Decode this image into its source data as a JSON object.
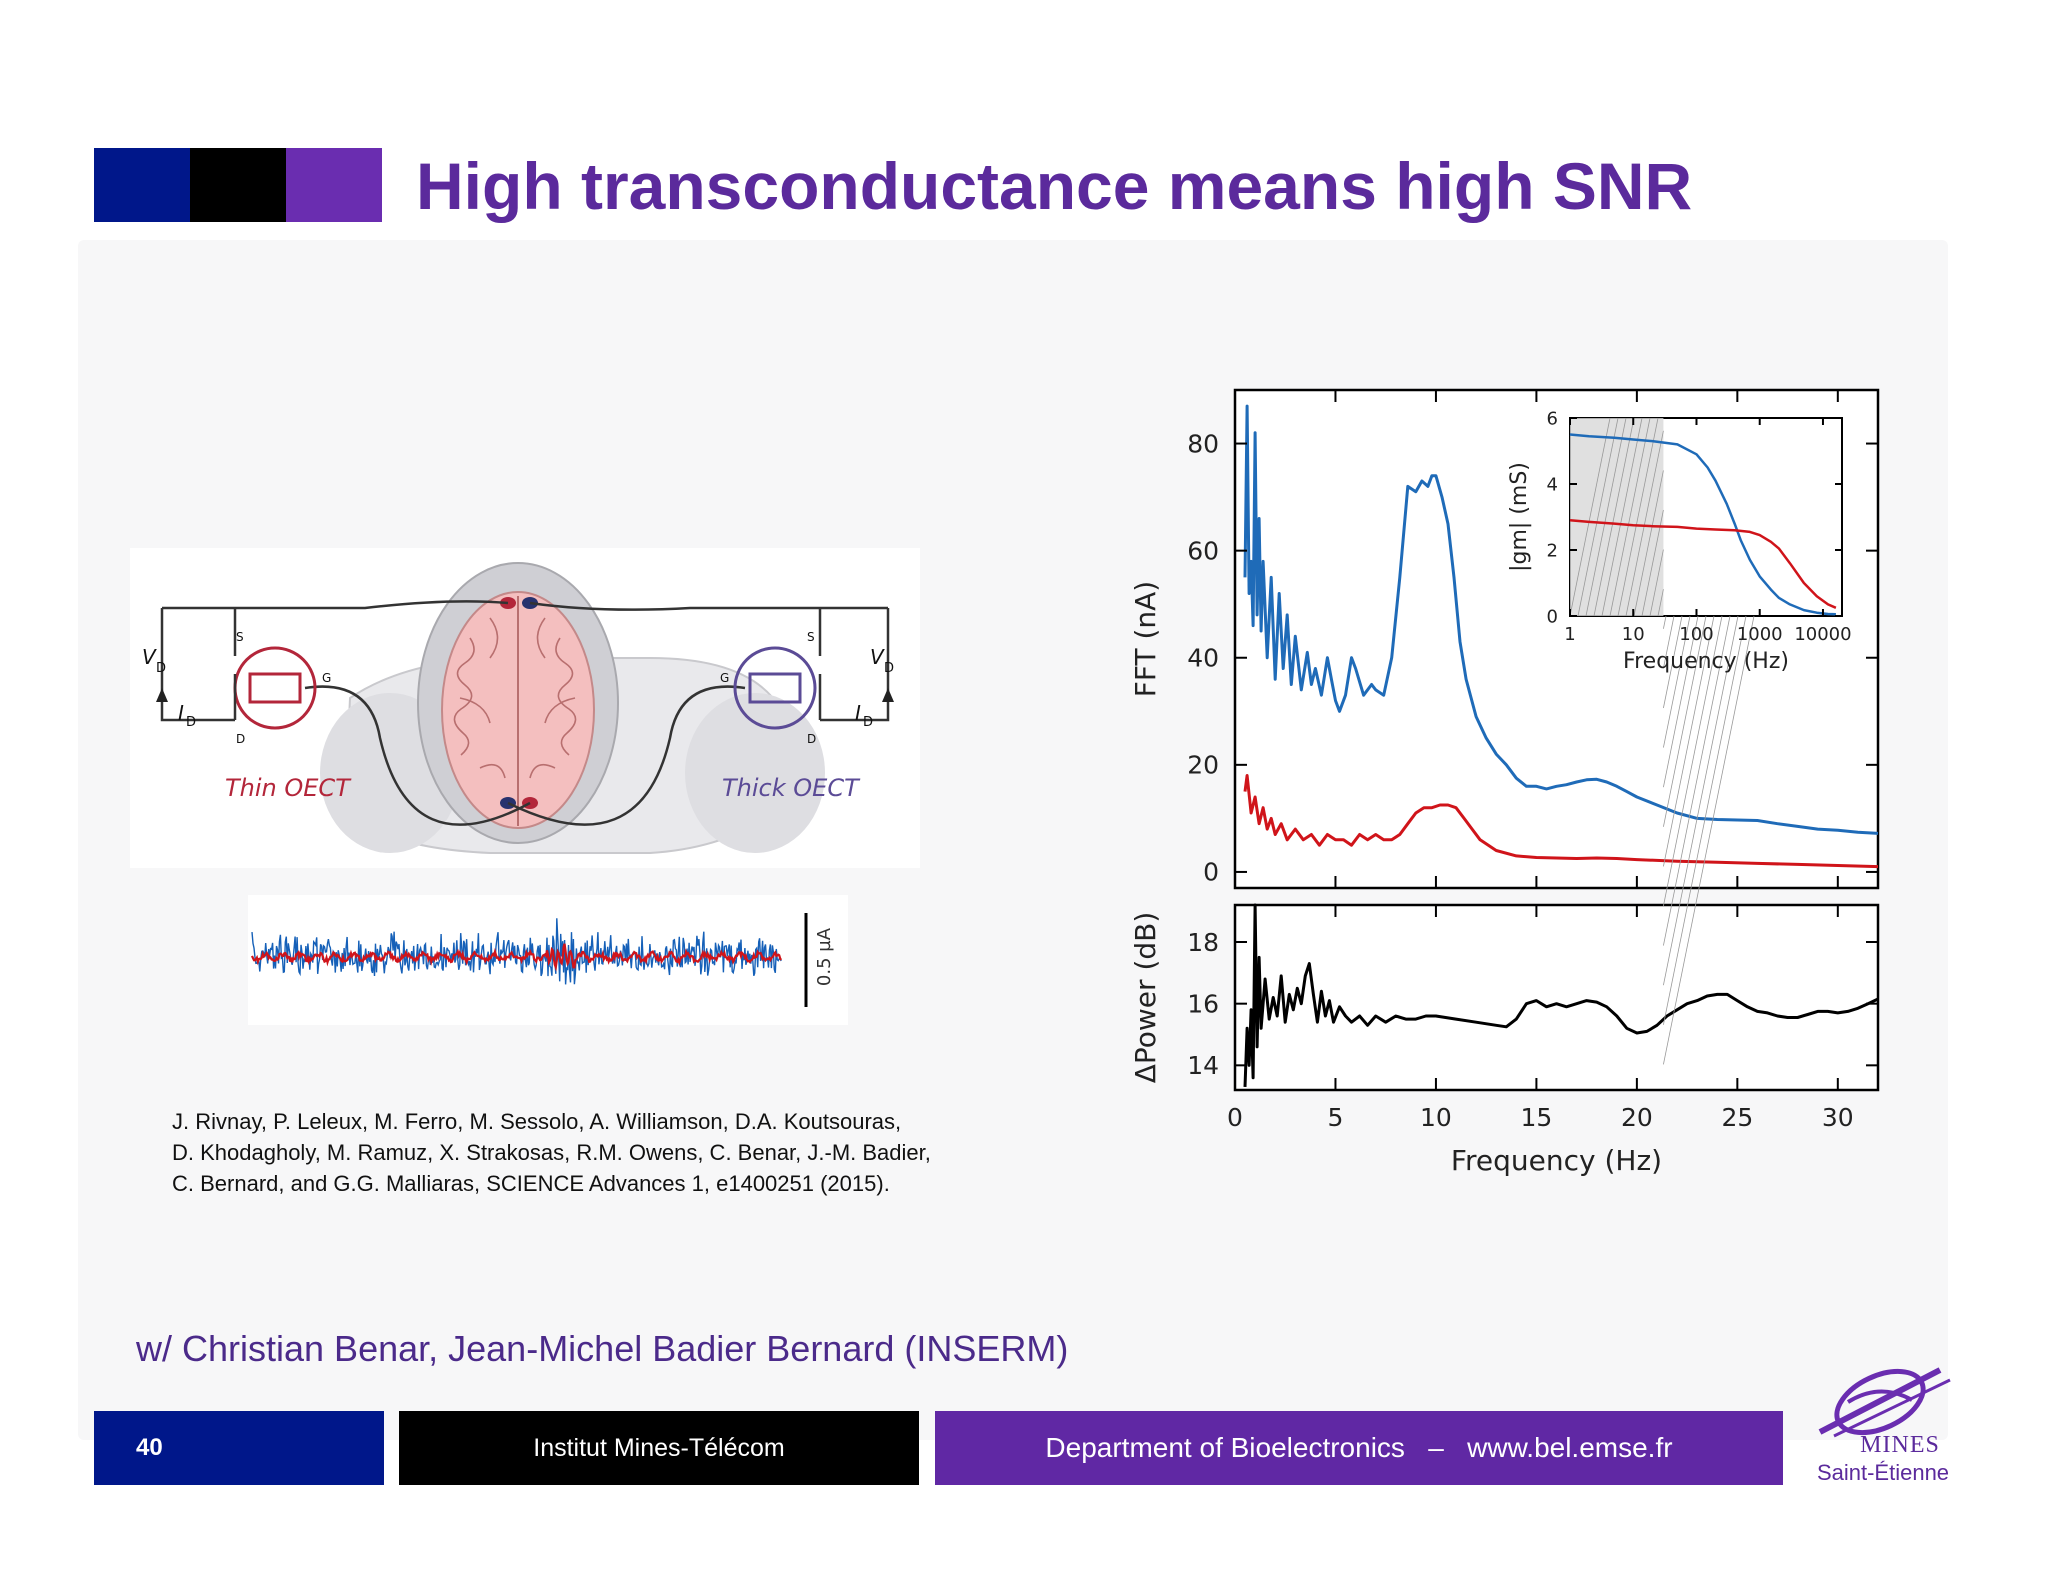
{
  "slide": {
    "title": "High transconductance means high SNR",
    "header_colors": [
      "#00178a",
      "#000000",
      "#6a2db0"
    ],
    "credit": "w/ Christian Benar, Jean-Michel Badier Bernard (INSERM)",
    "citation_lines": [
      "J. Rivnay, P. Leleux, M. Ferro, M. Sessolo, A. Williamson, D.A. Koutsouras,",
      "D. Khodagholy, M. Ramuz, X. Strakosas, R.M. Owens, C. Benar, J.-M. Badier,",
      "C. Bernard, and G.G. Malliaras, SCIENCE Advances 1, e1400251 (2015)."
    ]
  },
  "footer": {
    "page_number": "40",
    "institute": "Institut Mines-Télécom",
    "department": "Department of Bioelectronics   –   www.bel.emse.fr",
    "logo_line1": "MINES",
    "logo_line2": "Saint-Étienne"
  },
  "schematic": {
    "left_label": "Thin OECT",
    "right_label": "Thick OECT",
    "vd": "V",
    "vd_sub": "D",
    "id": "I",
    "id_sub": "D",
    "terminal_s": "S",
    "terminal_d": "D",
    "terminal_g": "G",
    "scale_bar": "0.5 µA",
    "colors": {
      "thin": "#b3263a",
      "thick": "#5b4b96",
      "trace_blue": "#1560b8",
      "trace_red": "#d0141a"
    }
  },
  "chart_data": [
    {
      "type": "line",
      "name": "fft",
      "xlim": [
        0,
        32
      ],
      "ylim": [
        -3,
        90
      ],
      "ylabel": "FFT (nA)",
      "xticks": [
        0,
        5,
        10,
        15,
        20,
        25,
        30
      ],
      "yticks": [
        0,
        20,
        40,
        60,
        80
      ],
      "series": [
        {
          "color": "#1f6bb8",
          "x": [
            0.5,
            0.6,
            0.7,
            0.8,
            0.9,
            1.0,
            1.1,
            1.2,
            1.3,
            1.4,
            1.6,
            1.8,
            2.0,
            2.2,
            2.4,
            2.6,
            2.8,
            3.0,
            3.3,
            3.6,
            3.8,
            4.0,
            4.3,
            4.6,
            4.8,
            5.0,
            5.2,
            5.5,
            5.8,
            6.0,
            6.4,
            6.8,
            7.0,
            7.4,
            7.8,
            8.2,
            8.6,
            9.0,
            9.3,
            9.6,
            9.8,
            10.0,
            10.3,
            10.6,
            10.9,
            11.2,
            11.5,
            12.0,
            12.5,
            13.0,
            13.5,
            14.0,
            14.5,
            15.0,
            15.5,
            16.0,
            16.5,
            17.0,
            17.5,
            18.0,
            18.5,
            19.0,
            19.5,
            20.0,
            21.0,
            22.0,
            23.0,
            24.0,
            25.0,
            26.0,
            27.0,
            28.0,
            29.0,
            30.0,
            31.0,
            32.0
          ],
          "y": [
            55,
            87,
            52,
            58,
            46,
            82,
            48,
            66,
            45,
            58,
            40,
            55,
            36,
            52,
            38,
            48,
            35,
            44,
            34,
            41,
            35,
            38,
            33,
            40,
            36,
            32,
            30,
            33,
            40,
            38,
            33,
            35,
            34,
            33,
            40,
            55,
            72,
            71,
            73,
            72,
            74,
            74,
            70,
            65,
            55,
            43,
            36,
            29,
            25,
            22,
            20,
            17.5,
            16,
            16,
            15.5,
            16,
            16.3,
            16.8,
            17.2,
            17.3,
            16.8,
            16,
            15,
            14,
            12.5,
            11,
            10,
            9.8,
            9.7,
            9.6,
            9,
            8.5,
            8,
            7.8,
            7.4,
            7.2
          ]
        },
        {
          "color": "#d0141a",
          "x": [
            0.5,
            0.6,
            0.8,
            1.0,
            1.2,
            1.4,
            1.6,
            1.8,
            2.0,
            2.3,
            2.6,
            3.0,
            3.4,
            3.8,
            4.2,
            4.6,
            5.0,
            5.4,
            5.8,
            6.2,
            6.6,
            7.0,
            7.4,
            7.8,
            8.2,
            8.6,
            9.0,
            9.4,
            9.8,
            10.2,
            10.6,
            11.0,
            11.4,
            11.8,
            12.2,
            13.0,
            14.0,
            15.0,
            16.0,
            17.0,
            18.0,
            19.0,
            20.0,
            22.0,
            24.0,
            26.0,
            28.0,
            30.0,
            32.0
          ],
          "y": [
            15,
            18,
            11,
            14,
            9,
            12,
            8,
            10,
            7,
            9,
            6,
            8,
            6,
            7,
            5,
            7,
            6,
            6,
            5,
            7,
            6,
            7,
            6,
            6,
            7,
            9,
            11,
            12,
            12,
            12.5,
            12.5,
            12,
            10,
            8,
            6,
            4,
            3,
            2.7,
            2.6,
            2.5,
            2.6,
            2.5,
            2.3,
            2.0,
            1.8,
            1.6,
            1.4,
            1.2,
            1.0
          ]
        }
      ]
    },
    {
      "type": "line",
      "name": "delta_power",
      "xlim": [
        0,
        32
      ],
      "ylim": [
        13.2,
        19.2
      ],
      "xlabel": "Frequency (Hz)",
      "ylabel": "ΔPower (dB)",
      "xticks": [
        0,
        5,
        10,
        15,
        20,
        25,
        30
      ],
      "yticks": [
        14,
        16,
        18
      ],
      "series": [
        {
          "color": "#000000",
          "x": [
            0.5,
            0.6,
            0.7,
            0.8,
            0.9,
            1.0,
            1.1,
            1.2,
            1.3,
            1.5,
            1.7,
            1.9,
            2.1,
            2.3,
            2.5,
            2.7,
            2.9,
            3.1,
            3.3,
            3.5,
            3.7,
            3.9,
            4.1,
            4.3,
            4.5,
            4.7,
            4.9,
            5.2,
            5.5,
            5.8,
            6.2,
            6.6,
            7.0,
            7.5,
            8.0,
            8.5,
            9.0,
            9.5,
            10.0,
            11.0,
            12.0,
            13.0,
            13.5,
            14.0,
            14.5,
            15.0,
            15.5,
            16.0,
            16.5,
            17.0,
            17.5,
            18.0,
            18.5,
            19.0,
            19.5,
            20.0,
            20.5,
            21.0,
            21.5,
            22.0,
            22.5,
            23.0,
            23.5,
            24.0,
            24.5,
            25.0,
            25.5,
            26.0,
            26.5,
            27.0,
            27.5,
            28.0,
            28.5,
            29.0,
            29.5,
            30.0,
            30.5,
            31.0,
            31.5,
            32.0
          ],
          "y": [
            13.3,
            15.2,
            14.0,
            15.8,
            13.6,
            19.2,
            14.6,
            17.5,
            15.2,
            16.8,
            15.5,
            16.2,
            15.6,
            16.9,
            15.4,
            16.3,
            15.8,
            16.5,
            16.0,
            16.9,
            17.3,
            16.3,
            15.4,
            16.4,
            15.6,
            16.1,
            15.4,
            15.9,
            15.6,
            15.4,
            15.6,
            15.3,
            15.6,
            15.4,
            15.6,
            15.5,
            15.5,
            15.6,
            15.6,
            15.5,
            15.4,
            15.3,
            15.25,
            15.5,
            16.0,
            16.1,
            15.9,
            16.0,
            15.9,
            16.0,
            16.1,
            16.05,
            15.9,
            15.6,
            15.2,
            15.05,
            15.1,
            15.3,
            15.6,
            15.8,
            16.0,
            16.1,
            16.25,
            16.3,
            16.3,
            16.1,
            15.9,
            15.75,
            15.7,
            15.6,
            15.55,
            15.55,
            15.65,
            15.75,
            15.75,
            15.7,
            15.75,
            15.85,
            16.0,
            16.15
          ]
        }
      ]
    },
    {
      "type": "line",
      "name": "gm_inset",
      "xscale": "log",
      "xlim": [
        1,
        20000
      ],
      "ylim": [
        0,
        6
      ],
      "xlabel": "Frequency (Hz)",
      "ylabel": "|gm| (mS)",
      "xticks": [
        1,
        10,
        100,
        1000,
        10000
      ],
      "xtick_labels": [
        "1",
        "10",
        "100",
        "1000",
        "10000"
      ],
      "yticks": [
        0,
        2,
        4,
        6
      ],
      "shaded_region": [
        1,
        30
      ],
      "series": [
        {
          "color": "#1f6bb8",
          "x": [
            1,
            2,
            5,
            10,
            20,
            50,
            100,
            150,
            200,
            300,
            400,
            500,
            700,
            1000,
            1500,
            2000,
            3000,
            5000,
            8000,
            12000,
            16000
          ],
          "y": [
            5.5,
            5.45,
            5.4,
            5.35,
            5.3,
            5.2,
            4.9,
            4.5,
            4.1,
            3.4,
            2.8,
            2.3,
            1.7,
            1.2,
            0.8,
            0.55,
            0.35,
            0.18,
            0.1,
            0.06,
            0.05
          ]
        },
        {
          "color": "#d0141a",
          "x": [
            1,
            2,
            5,
            10,
            20,
            50,
            100,
            200,
            400,
            700,
            1000,
            1500,
            2000,
            3000,
            5000,
            8000,
            12000,
            16000
          ],
          "y": [
            2.9,
            2.85,
            2.8,
            2.75,
            2.72,
            2.7,
            2.65,
            2.62,
            2.6,
            2.55,
            2.45,
            2.25,
            2.05,
            1.6,
            1.0,
            0.6,
            0.35,
            0.25
          ]
        }
      ]
    }
  ]
}
